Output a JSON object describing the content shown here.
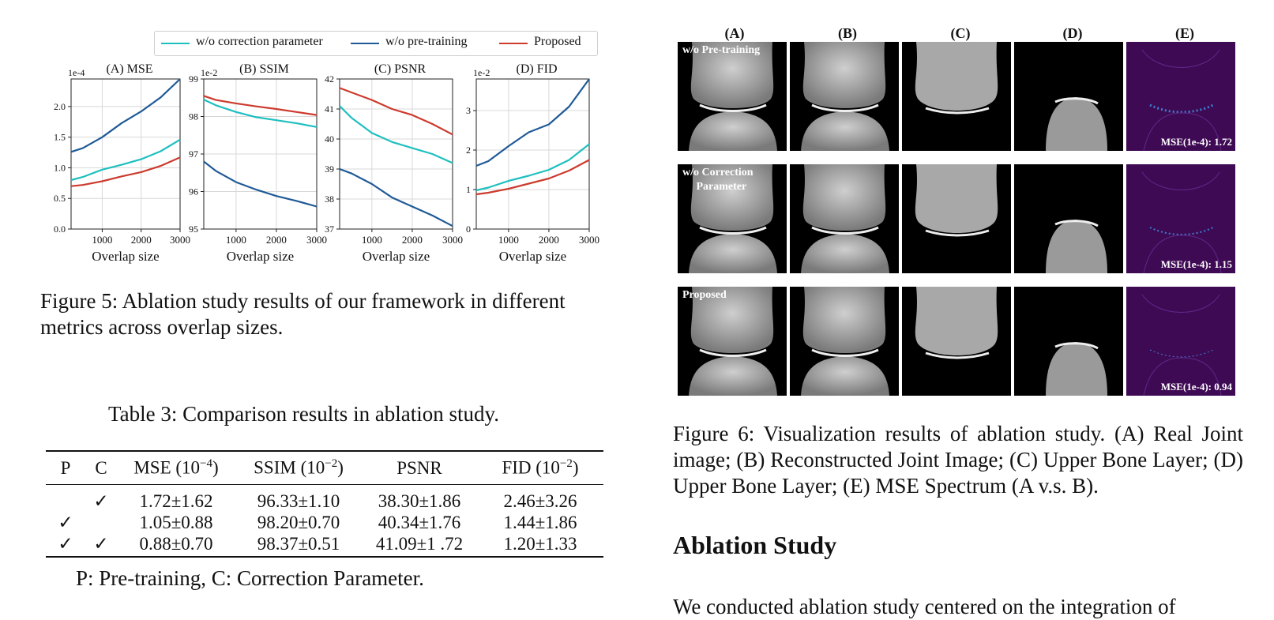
{
  "fig5": {
    "legend": [
      {
        "name": "w/o correction parameter",
        "color": "#1fbfbf"
      },
      {
        "name": "w/o pre-training",
        "color": "#1f5a96"
      },
      {
        "name": "Proposed",
        "color": "#cc3b2e"
      }
    ],
    "caption": "Figure 5: Ablation study results of our framework in different metrics across overlap sizes."
  },
  "chart_data": [
    {
      "type": "line",
      "title": "(A) MSE",
      "xlabel": "Overlap size",
      "ylabel": "",
      "scale_note": "1e-4",
      "xlim": [
        200,
        3000
      ],
      "ylim": [
        0,
        2.45
      ],
      "xticks": [
        "1000",
        "2000",
        "3000"
      ],
      "yticks": [
        "0.0",
        "0.5",
        "1.0",
        "1.5",
        "2.0"
      ],
      "x": [
        200,
        500,
        1000,
        1500,
        2000,
        2500,
        3000
      ],
      "series": [
        {
          "name": "w/o correction parameter",
          "color": "#1fbfbf",
          "values": [
            0.8,
            0.85,
            0.97,
            1.05,
            1.14,
            1.27,
            1.46
          ]
        },
        {
          "name": "w/o pre-training",
          "color": "#1f5a96",
          "values": [
            1.26,
            1.32,
            1.5,
            1.73,
            1.92,
            2.15,
            2.45
          ]
        },
        {
          "name": "Proposed",
          "color": "#cc3b2e",
          "values": [
            0.7,
            0.72,
            0.78,
            0.86,
            0.93,
            1.03,
            1.17
          ]
        }
      ]
    },
    {
      "type": "line",
      "title": "(B) SSIM",
      "xlabel": "Overlap size",
      "ylabel": "",
      "scale_note": "1e-2",
      "xlim": [
        200,
        3000
      ],
      "ylim": [
        95,
        99
      ],
      "xticks": [
        "1000",
        "2000",
        "3000"
      ],
      "yticks": [
        "95",
        "96",
        "97",
        "98",
        "99"
      ],
      "x": [
        200,
        500,
        1000,
        1500,
        2000,
        2500,
        3000
      ],
      "series": [
        {
          "name": "w/o correction parameter",
          "color": "#1fbfbf",
          "values": [
            98.45,
            98.3,
            98.12,
            97.98,
            97.9,
            97.82,
            97.72
          ]
        },
        {
          "name": "w/o pre-training",
          "color": "#1f5a96",
          "values": [
            96.8,
            96.55,
            96.25,
            96.05,
            95.88,
            95.75,
            95.6
          ]
        },
        {
          "name": "Proposed",
          "color": "#cc3b2e",
          "values": [
            98.55,
            98.44,
            98.35,
            98.27,
            98.2,
            98.12,
            98.04
          ]
        }
      ]
    },
    {
      "type": "line",
      "title": "(C) PSNR",
      "xlabel": "Overlap size",
      "ylabel": "",
      "scale_note": "",
      "xlim": [
        200,
        3000
      ],
      "ylim": [
        37,
        42
      ],
      "xticks": [
        "1000",
        "2000",
        "3000"
      ],
      "yticks": [
        "37",
        "38",
        "39",
        "40",
        "41",
        "42"
      ],
      "x": [
        200,
        500,
        1000,
        1500,
        2000,
        2500,
        3000
      ],
      "series": [
        {
          "name": "w/o correction parameter",
          "color": "#1fbfbf",
          "values": [
            41.1,
            40.7,
            40.2,
            39.9,
            39.7,
            39.5,
            39.2
          ]
        },
        {
          "name": "w/o pre-training",
          "color": "#1f5a96",
          "values": [
            39.0,
            38.85,
            38.5,
            38.05,
            37.75,
            37.45,
            37.1
          ]
        },
        {
          "name": "Proposed",
          "color": "#cc3b2e",
          "values": [
            41.7,
            41.55,
            41.3,
            41.0,
            40.8,
            40.5,
            40.15
          ]
        }
      ]
    },
    {
      "type": "line",
      "title": "(D) FID",
      "xlabel": "Overlap size",
      "ylabel": "",
      "scale_note": "1e-2",
      "xlim": [
        200,
        3000
      ],
      "ylim": [
        0,
        3.8
      ],
      "xticks": [
        "1000",
        "2000",
        "3000"
      ],
      "yticks": [
        "0",
        "1",
        "2",
        "3"
      ],
      "x": [
        200,
        500,
        1000,
        1500,
        2000,
        2500,
        3000
      ],
      "series": [
        {
          "name": "w/o correction parameter",
          "color": "#1fbfbf",
          "values": [
            0.98,
            1.05,
            1.22,
            1.35,
            1.5,
            1.75,
            2.15
          ]
        },
        {
          "name": "w/o pre-training",
          "color": "#1f5a96",
          "values": [
            1.6,
            1.72,
            2.1,
            2.45,
            2.65,
            3.1,
            3.8
          ]
        },
        {
          "name": "Proposed",
          "color": "#cc3b2e",
          "values": [
            0.88,
            0.92,
            1.02,
            1.15,
            1.28,
            1.48,
            1.75
          ]
        }
      ]
    }
  ],
  "table3": {
    "title": "Table 3: Comparison results in ablation study.",
    "headers": [
      "P",
      "C",
      "MSE (10",
      "SSIM (10",
      "PSNR",
      "FID (10"
    ],
    "header_exps": [
      "",
      "",
      "−4",
      "−2",
      "",
      "−2"
    ],
    "rows": [
      [
        "",
        "✓",
        "1.72±1.62",
        "96.33±1.10",
        "38.30±1.86",
        "2.46±3.26"
      ],
      [
        "✓",
        "",
        "1.05±0.88",
        "98.20±0.70",
        "40.34±1.76",
        "1.44±1.86"
      ],
      [
        "✓",
        "✓",
        "0.88±0.70",
        "98.37±0.51",
        "41.09±1 .72",
        "1.20±1.33"
      ]
    ],
    "footnote": "P: Pre-training, C: Correction Parameter."
  },
  "fig6": {
    "columns": [
      "(A)",
      "(B)",
      "(C)",
      "(D)",
      "(E)"
    ],
    "row_labels": [
      "w/o Pre-training",
      "w/o Correction Parameter",
      "Proposed"
    ],
    "mse_labels": [
      "MSE(1e-4): 1.72",
      "MSE(1e-4): 1.15",
      "MSE(1e-4): 0.94"
    ],
    "caption": "Figure 6: Visualization results of ablation study. (A) Real Joint image; (B) Reconstructed Joint Image; (C) Upper Bone Layer; (D) Upper Bone Layer; (E) MSE Spectrum (A v.s. B)."
  },
  "section": {
    "heading": "Ablation Study",
    "body_start": "We conducted ablation study centered on the integration of"
  }
}
